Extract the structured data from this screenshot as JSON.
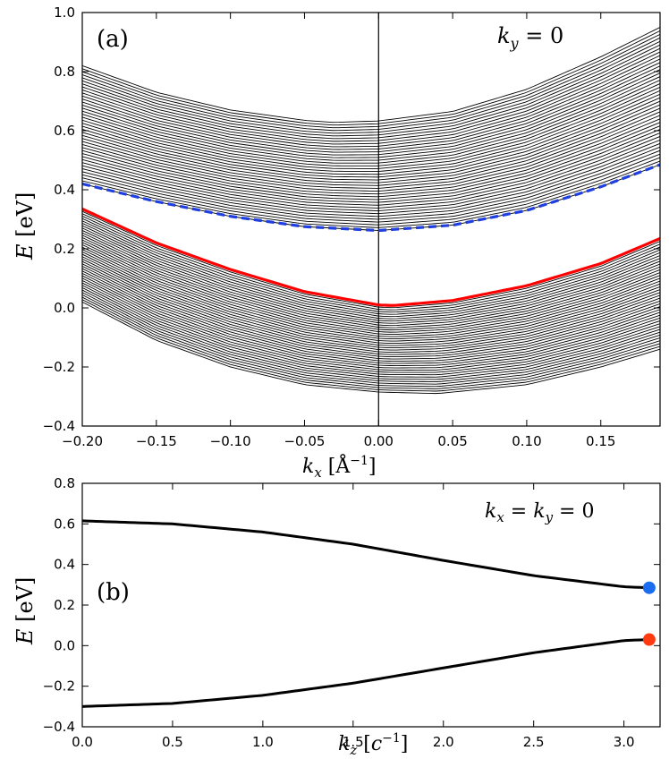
{
  "chart_data": [
    {
      "panel": "(a)",
      "type": "line",
      "annotation": "k_y = 0",
      "xlabel": "k_x [Å^-1]",
      "ylabel": "E [eV]",
      "xlim": [
        -0.2,
        0.19
      ],
      "ylim": [
        -0.4,
        1.0
      ],
      "xticks": [
        -0.2,
        -0.15,
        -0.1,
        -0.05,
        0.0,
        0.05,
        0.1,
        0.15
      ],
      "xtick_labels": [
        "−0.20",
        "−0.15",
        "−0.10",
        "−0.05",
        "0.00",
        "0.05",
        "0.10",
        "0.15"
      ],
      "yticks": [
        -0.4,
        -0.2,
        0.0,
        0.2,
        0.4,
        0.6,
        0.8,
        1.0
      ],
      "ytick_labels": [
        "−0.4",
        "−0.2",
        "0.0",
        "0.2",
        "0.4",
        "0.6",
        "0.8",
        "1.0"
      ],
      "vertical_line_at": 0.0,
      "bands": [
        {
          "name": "conduction band continuum",
          "color": "#000000",
          "line_count": 40,
          "upper_edge": {
            "x": [
              -0.2,
              -0.15,
              -0.1,
              -0.05,
              -0.03,
              0.0,
              0.05,
              0.1,
              0.15,
              0.19
            ],
            "y": [
              0.82,
              0.73,
              0.67,
              0.635,
              0.628,
              0.633,
              0.665,
              0.74,
              0.85,
              0.95
            ]
          },
          "lower_edge": {
            "x": [
              -0.2,
              -0.15,
              -0.1,
              -0.05,
              0.0,
              0.05,
              0.1,
              0.15,
              0.19
            ],
            "y": [
              0.42,
              0.36,
              0.31,
              0.275,
              0.262,
              0.28,
              0.33,
              0.41,
              0.485
            ]
          }
        },
        {
          "name": "valence band continuum",
          "color": "#000000",
          "line_count": 40,
          "upper_edge": {
            "x": [
              -0.2,
              -0.15,
              -0.1,
              -0.05,
              0.0,
              0.01,
              0.05,
              0.1,
              0.15,
              0.19
            ],
            "y": [
              0.335,
              0.22,
              0.13,
              0.055,
              0.01,
              0.008,
              0.025,
              0.075,
              0.15,
              0.235
            ]
          },
          "lower_edge": {
            "x": [
              -0.2,
              -0.15,
              -0.1,
              -0.05,
              0.0,
              0.04,
              0.1,
              0.15,
              0.19
            ],
            "y": [
              0.02,
              -0.11,
              -0.2,
              -0.26,
              -0.285,
              -0.29,
              -0.26,
              -0.2,
              -0.14
            ]
          }
        }
      ],
      "series": [
        {
          "name": "conduction surface edge",
          "color": "#1f3fe0",
          "dash": true,
          "x": [
            -0.2,
            -0.15,
            -0.1,
            -0.05,
            0.0,
            0.05,
            0.1,
            0.15,
            0.19
          ],
          "y": [
            0.42,
            0.36,
            0.31,
            0.275,
            0.262,
            0.28,
            0.33,
            0.41,
            0.485
          ]
        },
        {
          "name": "valence surface edge",
          "color": "#ff0000",
          "dash": false,
          "x": [
            -0.2,
            -0.15,
            -0.1,
            -0.05,
            0.0,
            0.01,
            0.05,
            0.1,
            0.15,
            0.19
          ],
          "y": [
            0.335,
            0.22,
            0.13,
            0.055,
            0.01,
            0.008,
            0.025,
            0.075,
            0.15,
            0.235
          ]
        }
      ]
    },
    {
      "panel": "(b)",
      "type": "line",
      "annotation": "k_x = k_y = 0",
      "xlabel": "k_z [c^-1]",
      "ylabel": "E [eV]",
      "xlim": [
        0.0,
        3.2
      ],
      "ylim": [
        -0.4,
        0.8
      ],
      "xticks": [
        0.0,
        0.5,
        1.0,
        1.5,
        2.0,
        2.5,
        3.0
      ],
      "xtick_labels": [
        "0.0",
        "0.5",
        "1.0",
        "1.5",
        "2.0",
        "2.5",
        "3.0"
      ],
      "yticks": [
        -0.4,
        -0.2,
        0.0,
        0.2,
        0.4,
        0.6,
        0.8
      ],
      "ytick_labels": [
        "−0.4",
        "−0.2",
        "0.0",
        "0.2",
        "0.4",
        "0.6",
        "0.8"
      ],
      "series": [
        {
          "name": "conduction band",
          "color": "#000000",
          "x": [
            0.0,
            0.5,
            1.0,
            1.5,
            2.0,
            2.5,
            3.0,
            3.14
          ],
          "y": [
            0.615,
            0.6,
            0.56,
            0.5,
            0.42,
            0.345,
            0.29,
            0.285
          ]
        },
        {
          "name": "valence band",
          "color": "#000000",
          "x": [
            0.0,
            0.5,
            1.0,
            1.5,
            2.0,
            2.5,
            3.0,
            3.14
          ],
          "y": [
            -0.3,
            -0.285,
            -0.245,
            -0.185,
            -0.11,
            -0.035,
            0.025,
            0.03
          ]
        }
      ],
      "markers": [
        {
          "name": "conduction band edge",
          "color": "#1a6cf0",
          "x": 3.14,
          "y": 0.285
        },
        {
          "name": "valence band edge",
          "color": "#ff3a10",
          "x": 3.14,
          "y": 0.03
        }
      ]
    }
  ]
}
